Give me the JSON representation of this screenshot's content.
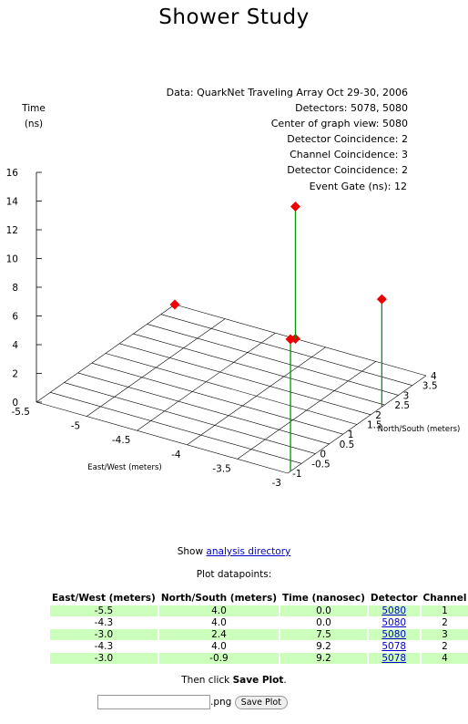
{
  "page": {
    "title": "Shower Study"
  },
  "info_lines": [
    "Data: QuarkNet Traveling Array Oct 29-30, 2006",
    "Detectors: 5078, 5080",
    "Center of graph view: 5080",
    "Detector Coincidence: 2",
    "Channel Coincidence: 3",
    "Detector Coincidence: 2",
    "Event Gate (ns): 12"
  ],
  "chart_data": {
    "type": "scatter",
    "title": "",
    "axes": {
      "z": {
        "label_line1": "Time",
        "label_line2": "(ns)",
        "ticks": [
          "0",
          "2",
          "4",
          "6",
          "8",
          "10",
          "12",
          "14",
          "16"
        ],
        "range": [
          0,
          16
        ]
      },
      "x": {
        "label": "East/West (meters)",
        "ticks": [
          "-5.5",
          "-5",
          "-4.5",
          "-4",
          "-3.5",
          "-3"
        ],
        "range": [
          -5.5,
          -3
        ]
      },
      "y": {
        "label": "North/South (meters)",
        "ticks": [
          "-1",
          "-0.5",
          "0",
          "0.5",
          "1",
          "1.5",
          "2",
          "2.5",
          "3",
          "3.5",
          "4"
        ],
        "range": [
          -1,
          4
        ]
      }
    },
    "grid": true,
    "colors": {
      "marker": "#ee0000",
      "stem": "#009900"
    },
    "points": [
      {
        "x": -5.5,
        "y": 4.0,
        "z": 0.0
      },
      {
        "x": -4.3,
        "y": 4.0,
        "z": 0.0
      },
      {
        "x": -3.0,
        "y": 2.4,
        "z": 7.5
      },
      {
        "x": -4.3,
        "y": 4.0,
        "z": 9.2
      },
      {
        "x": -3.0,
        "y": -0.9,
        "z": 9.2
      }
    ]
  },
  "show": {
    "prefix": "Show",
    "link": "analysis directory"
  },
  "table": {
    "label": "Plot datapoints:",
    "headers": [
      "East/West (meters)",
      "North/South (meters)",
      "Time (nanosec)",
      "Detector",
      "Channel"
    ],
    "rows": [
      [
        "-5.5",
        "4.0",
        "0.0",
        "5080",
        "1"
      ],
      [
        "-4.3",
        "4.0",
        "0.0",
        "5080",
        "2"
      ],
      [
        "-3.0",
        "2.4",
        "7.5",
        "5080",
        "3"
      ],
      [
        "-4.3",
        "4.0",
        "9.2",
        "5078",
        "2"
      ],
      [
        "-3.0",
        "-0.9",
        "9.2",
        "5078",
        "4"
      ]
    ]
  },
  "save": {
    "then_text": "Then click",
    "then_bold": "Save Plot",
    "then_end": ".",
    "filename_value": "",
    "extension": ".png",
    "button_label": "Save Plot"
  }
}
